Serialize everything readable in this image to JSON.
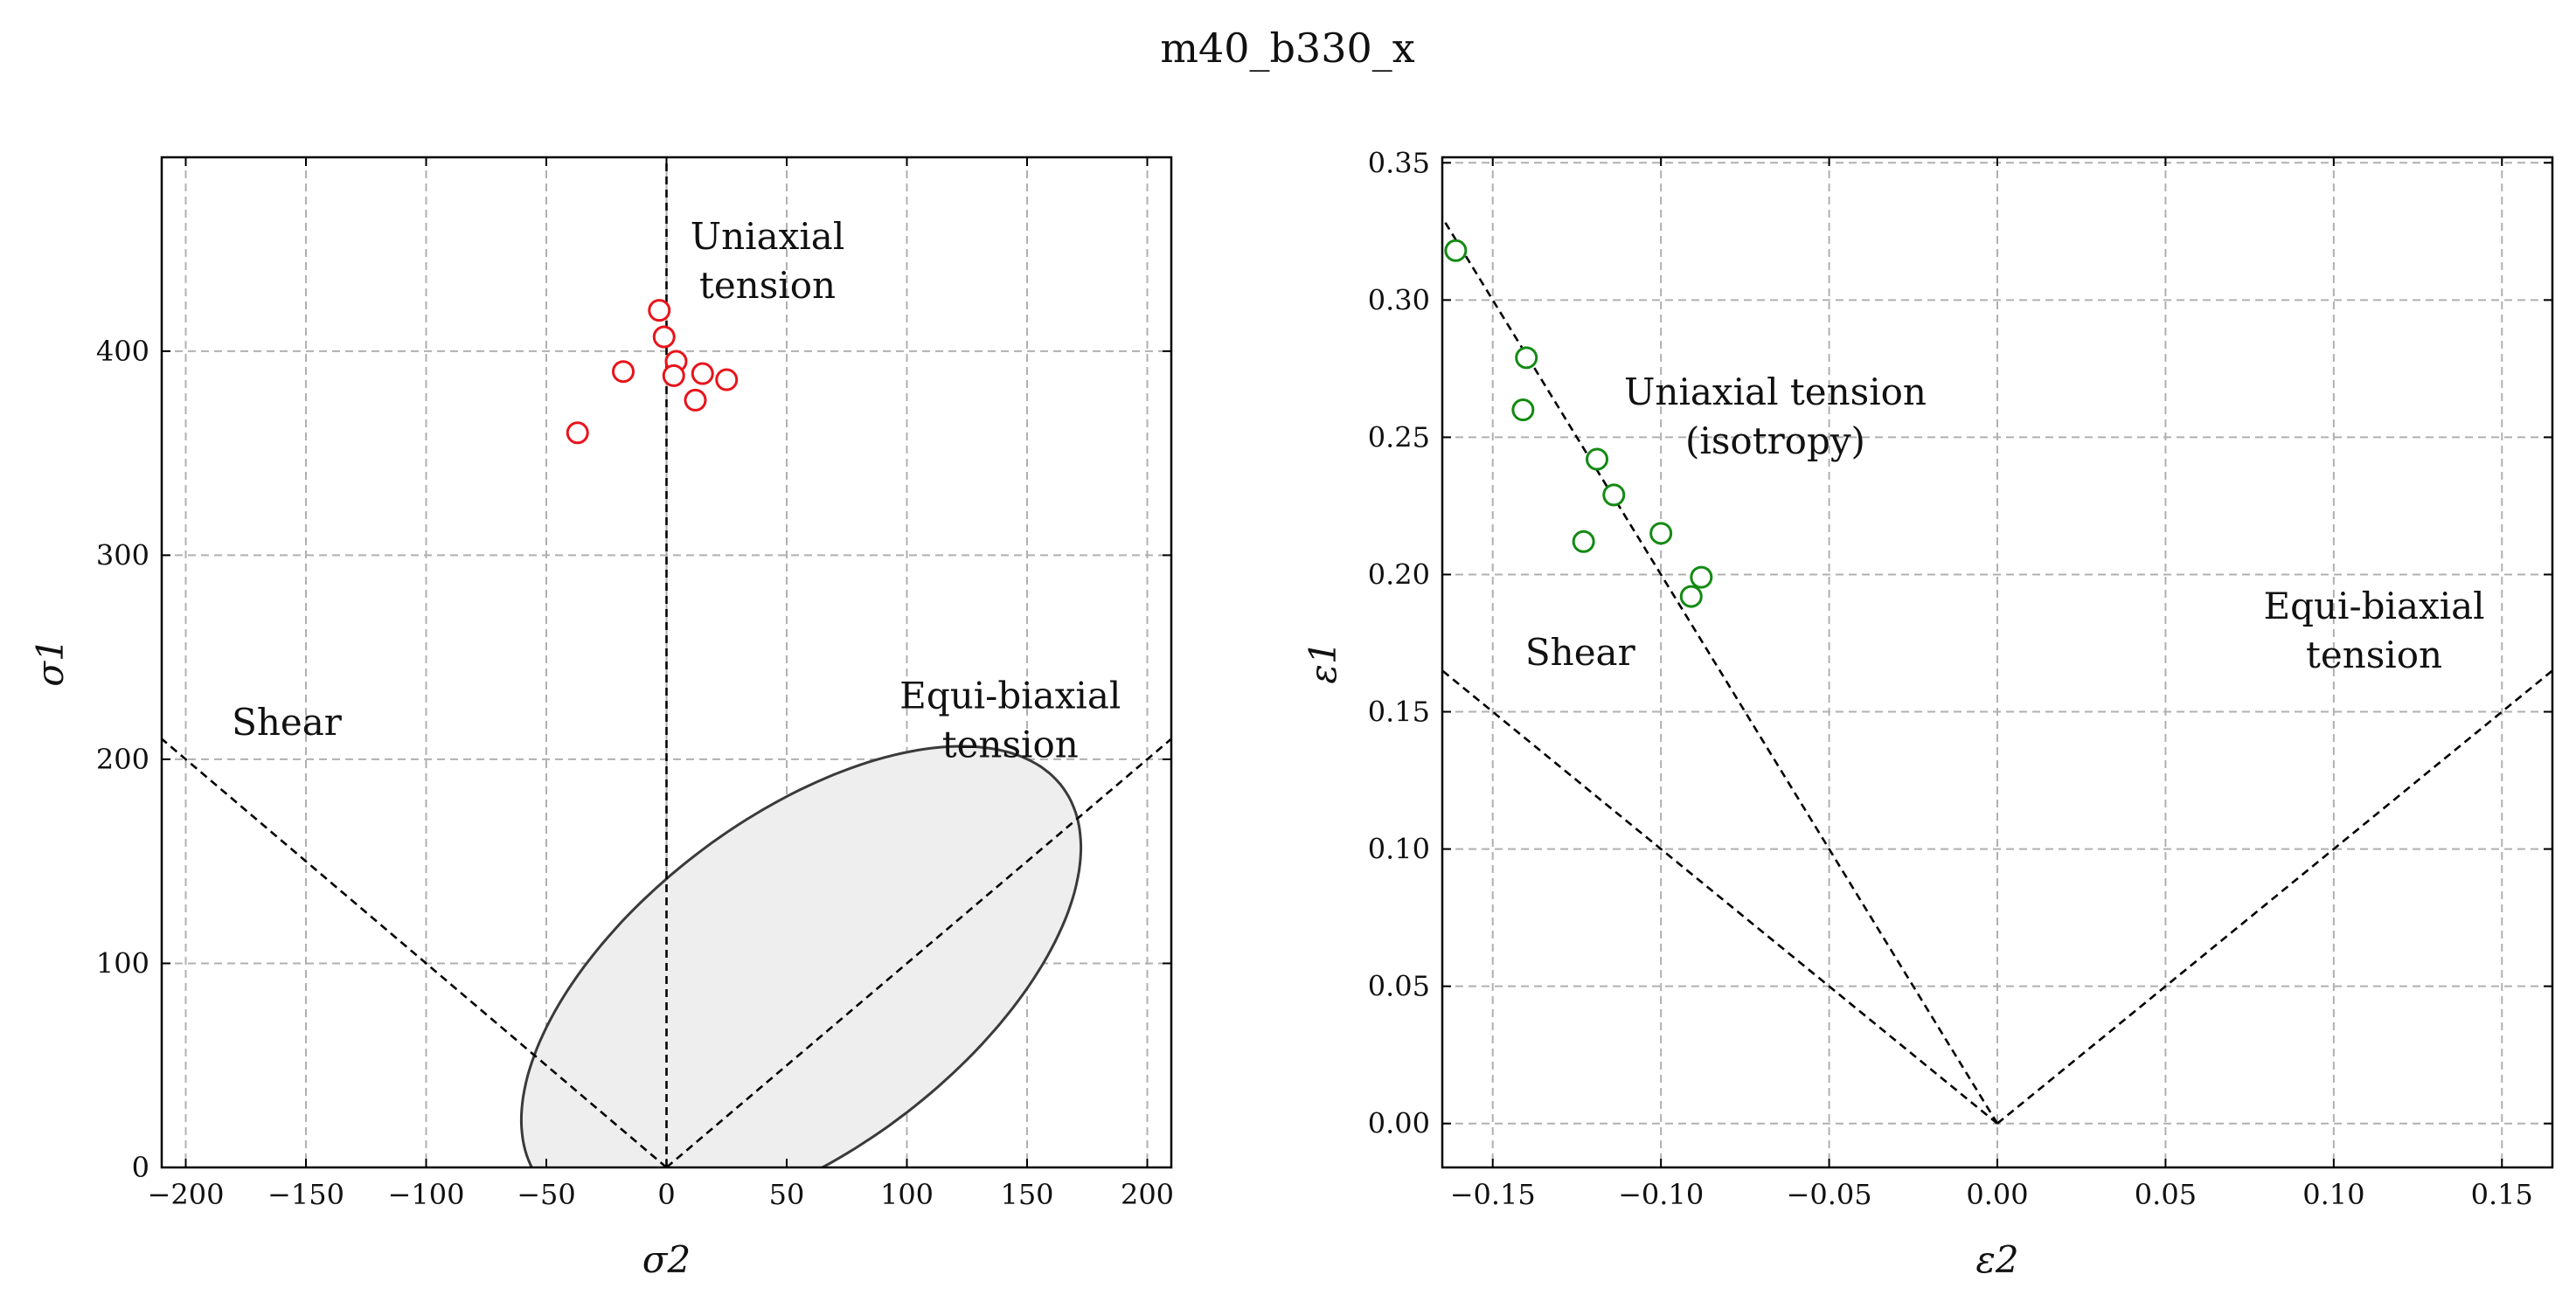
{
  "figure_title": "m40_b330_x",
  "chart_data": [
    {
      "type": "scatter",
      "title": "",
      "xlabel": "σ2",
      "ylabel": "σ1",
      "xlim": [
        -210,
        210
      ],
      "ylim": [
        0,
        495
      ],
      "xticks": [
        -200,
        -150,
        -100,
        -50,
        0,
        50,
        100,
        150,
        200
      ],
      "xtick_labels": [
        "−200",
        "−150",
        "−100",
        "−50",
        "0",
        "50",
        "100",
        "150",
        "200"
      ],
      "yticks": [
        0,
        100,
        200,
        300,
        400
      ],
      "ytick_labels": [
        "0",
        "100",
        "200",
        "300",
        "400"
      ],
      "grid": true,
      "points": {
        "color": "#e8141a",
        "x": [
          -3,
          -1,
          4,
          3,
          -18,
          15,
          25,
          12,
          -37
        ],
        "y": [
          420,
          407,
          395,
          388,
          390,
          389,
          386,
          376,
          360
        ]
      },
      "reference_lines": [
        {
          "x": [
            0,
            0
          ],
          "y": [
            0,
            495
          ]
        },
        {
          "x": [
            0,
            -210
          ],
          "y": [
            0,
            210
          ]
        },
        {
          "x": [
            0,
            210
          ],
          "y": [
            0,
            210
          ]
        }
      ],
      "yield_surface": {
        "fill": "#eeeeee",
        "edge": "#3a3a3a"
      },
      "annotations": [
        {
          "lines": [
            "Uniaxial",
            "tension"
          ],
          "x": 42,
          "y": 438
        },
        {
          "lines": [
            "Shear"
          ],
          "x": -158,
          "y": 212
        },
        {
          "lines": [
            "Equi-biaxial",
            "tension"
          ],
          "x": 143,
          "y": 213
        }
      ]
    },
    {
      "type": "scatter",
      "title": "",
      "xlabel": "ε2",
      "ylabel": "ε1",
      "xlim": [
        -0.165,
        0.165
      ],
      "ylim": [
        -0.016,
        0.352
      ],
      "xticks": [
        -0.15,
        -0.1,
        -0.05,
        0.0,
        0.05,
        0.1,
        0.15
      ],
      "xtick_labels": [
        "−0.15",
        "−0.10",
        "−0.05",
        "0.00",
        "0.05",
        "0.10",
        "0.15"
      ],
      "yticks": [
        0.0,
        0.05,
        0.1,
        0.15,
        0.2,
        0.25,
        0.3,
        0.35
      ],
      "ytick_labels": [
        "0.00",
        "0.05",
        "0.10",
        "0.15",
        "0.20",
        "0.25",
        "0.30",
        "0.35"
      ],
      "grid": true,
      "points": {
        "color": "#128a12",
        "x": [
          -0.161,
          -0.14,
          -0.141,
          -0.119,
          -0.114,
          -0.123,
          -0.1,
          -0.088,
          -0.091
        ],
        "y": [
          0.318,
          0.279,
          0.26,
          0.242,
          0.229,
          0.212,
          0.215,
          0.199,
          0.192
        ]
      },
      "reference_lines": [
        {
          "x": [
            0,
            -0.165
          ],
          "y": [
            0,
            0.33
          ]
        },
        {
          "x": [
            0,
            -0.165
          ],
          "y": [
            0,
            0.165
          ]
        },
        {
          "x": [
            0,
            0.165
          ],
          "y": [
            0,
            0.165
          ]
        }
      ],
      "annotations": [
        {
          "lines": [
            "Uniaxial tension",
            "(isotropy)"
          ],
          "x": -0.066,
          "y": 0.253
        },
        {
          "lines": [
            "Shear"
          ],
          "x": -0.124,
          "y": 0.167
        },
        {
          "lines": [
            "Equi-biaxial",
            "tension"
          ],
          "x": 0.112,
          "y": 0.175
        }
      ]
    }
  ]
}
